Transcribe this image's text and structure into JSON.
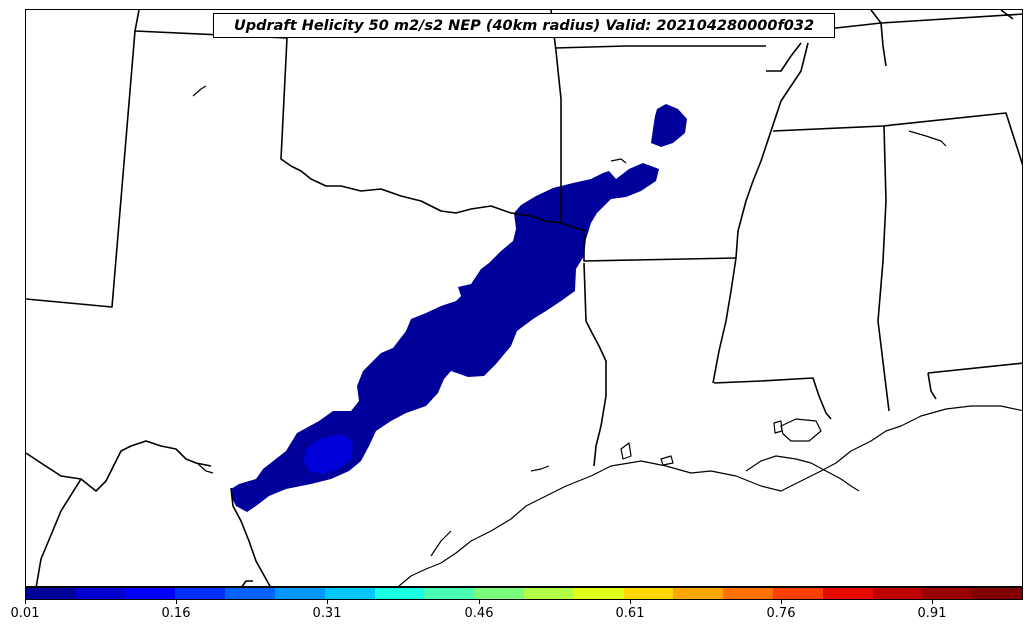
{
  "title": "Updraft Helicity 50 m2/s2 NEP (40km radius) Valid: 202104280000f032",
  "colorbar": {
    "colors": [
      "#00009b",
      "#0000d0",
      "#0000ff",
      "#0030ff",
      "#0064ff",
      "#0098ff",
      "#00c8ff",
      "#1affe1",
      "#48ffb3",
      "#7dff7e",
      "#b3ff48",
      "#e1ff1a",
      "#ffd900",
      "#ffa600",
      "#ff7200",
      "#ff3f00",
      "#e50b00",
      "#c00000",
      "#9b0000",
      "#800000"
    ],
    "ticks": [
      "0.01",
      "0.16",
      "0.31",
      "0.46",
      "0.61",
      "0.76",
      "0.91"
    ],
    "min": 0.01,
    "max": 1.0
  },
  "map": {
    "fill_colors": {
      "low": "#00009b",
      "mid": "#0000d8"
    }
  }
}
